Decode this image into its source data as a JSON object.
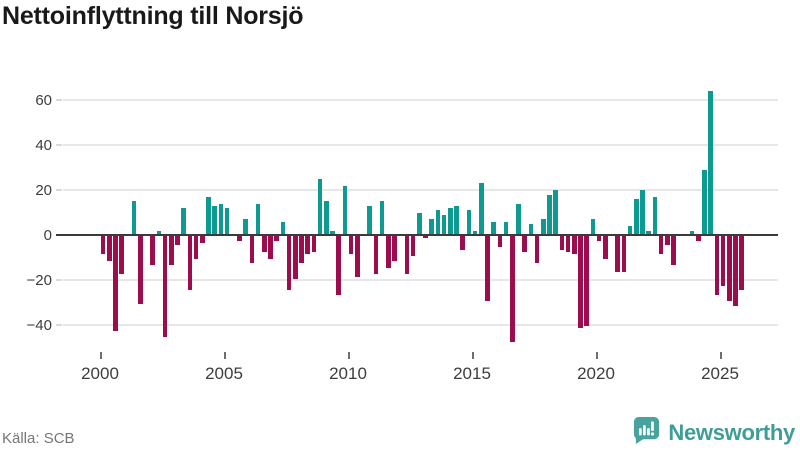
{
  "title": "Nettoinflyttning till Norsjö",
  "footer": {
    "source": "Källa: SCB",
    "brand": "Newsworthy"
  },
  "colors": {
    "positive": "#0f9a91",
    "negative": "#9b0d4c",
    "brand_teal": "#46a39d",
    "grid": "#e7e7e7",
    "zero_line": "#3b3b3b",
    "text": "#3d3d3d",
    "title_text": "#191919",
    "source_text": "#767676"
  },
  "chart_data": {
    "type": "bar",
    "title": "Nettoinflyttning till Norsjö",
    "xlabel": "",
    "ylabel": "",
    "frequency": "quarterly",
    "period_start": "2000 Q1",
    "period_end": "2025 Q4",
    "x_tick_labels": [
      "2000",
      "2005",
      "2010",
      "2015",
      "2020",
      "2025"
    ],
    "y_ticks": [
      60,
      40,
      20,
      0,
      -20,
      -40
    ],
    "y_tick_labels": [
      "60",
      "40",
      "20",
      "0",
      "−20",
      "−40"
    ],
    "ylim": [
      -50,
      70
    ],
    "grid": true,
    "legend": false,
    "series": [
      {
        "year": 2000,
        "values": [
          -8,
          -11,
          -42,
          -17
        ]
      },
      {
        "year": 2001,
        "values": [
          0,
          15,
          -30,
          0
        ]
      },
      {
        "year": 2002,
        "values": [
          -13,
          2,
          -45,
          -13
        ]
      },
      {
        "year": 2003,
        "values": [
          -4,
          12,
          -24,
          -10
        ]
      },
      {
        "year": 2004,
        "values": [
          -3,
          17,
          13,
          14
        ]
      },
      {
        "year": 2005,
        "values": [
          12,
          0,
          -2,
          7
        ]
      },
      {
        "year": 2006,
        "values": [
          -12,
          14,
          -7,
          -10
        ]
      },
      {
        "year": 2007,
        "values": [
          -2,
          6,
          -24,
          -19
        ]
      },
      {
        "year": 2008,
        "values": [
          -12,
          -8,
          -7,
          25
        ]
      },
      {
        "year": 2009,
        "values": [
          15,
          2,
          -26,
          22
        ]
      },
      {
        "year": 2010,
        "values": [
          -8,
          -18,
          0,
          13
        ]
      },
      {
        "year": 2011,
        "values": [
          -17,
          15,
          -14,
          -11
        ]
      },
      {
        "year": 2012,
        "values": [
          0,
          -17,
          -9,
          10
        ]
      },
      {
        "year": 2013,
        "values": [
          -1,
          7,
          11,
          9
        ]
      },
      {
        "year": 2014,
        "values": [
          12,
          13,
          -6,
          11
        ]
      },
      {
        "year": 2015,
        "values": [
          2,
          23,
          -29,
          6
        ]
      },
      {
        "year": 2016,
        "values": [
          -5,
          6,
          -47,
          14
        ]
      },
      {
        "year": 2017,
        "values": [
          -7,
          5,
          -12,
          7
        ]
      },
      {
        "year": 2018,
        "values": [
          18,
          20,
          -6,
          -7
        ]
      },
      {
        "year": 2019,
        "values": [
          -8,
          -41,
          -40,
          7
        ]
      },
      {
        "year": 2020,
        "values": [
          -2,
          -10,
          0,
          -16
        ]
      },
      {
        "year": 2021,
        "values": [
          -16,
          4,
          16,
          20
        ]
      },
      {
        "year": 2022,
        "values": [
          2,
          17,
          -8,
          -4
        ]
      },
      {
        "year": 2023,
        "values": [
          -13,
          0,
          0,
          2
        ]
      },
      {
        "year": 2024,
        "values": [
          -2,
          29,
          64,
          -26
        ]
      },
      {
        "year": 2025,
        "values": [
          -22,
          -29,
          -31,
          -24
        ]
      }
    ]
  }
}
